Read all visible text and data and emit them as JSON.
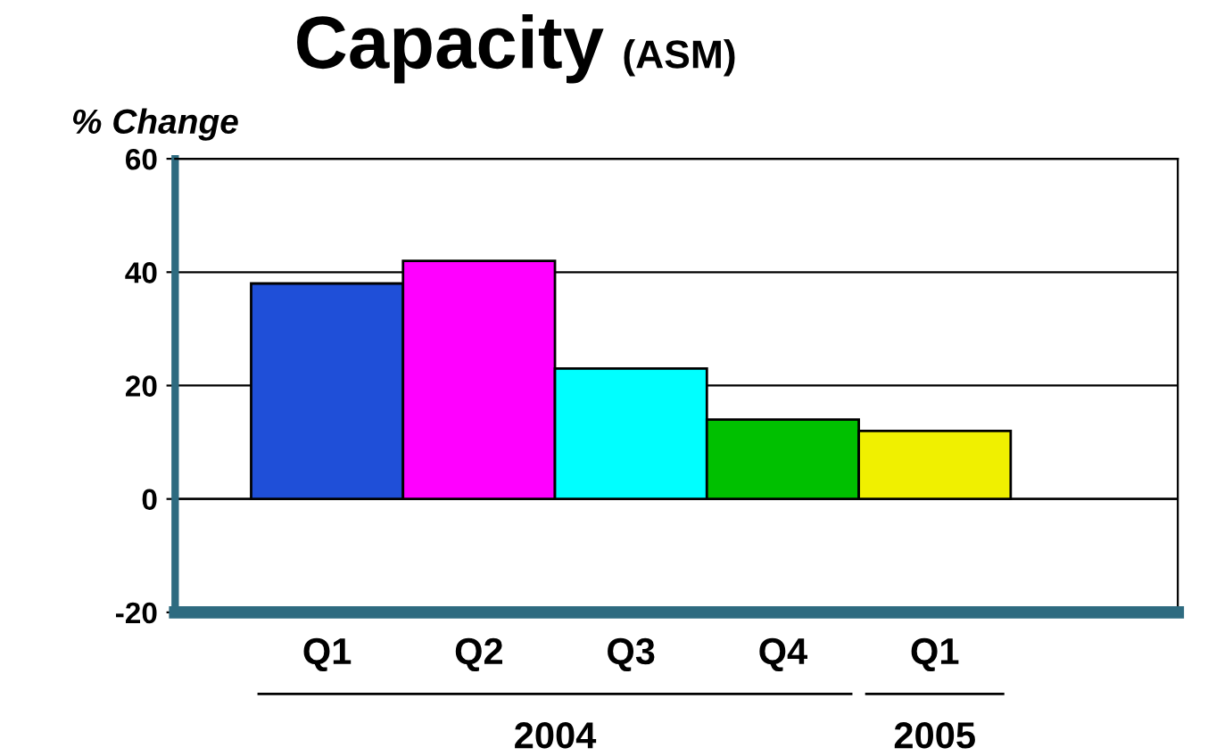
{
  "chart_data": {
    "type": "bar",
    "title": "Capacity",
    "subtitle": "(ASM)",
    "ylabel": "% Change",
    "categories": [
      "Q1",
      "Q2",
      "Q3",
      "Q4",
      "Q1"
    ],
    "values": [
      38,
      42,
      23,
      14,
      12
    ],
    "colors": [
      "#1f4fd8",
      "#ff00ff",
      "#00ffff",
      "#00c000",
      "#f0f000"
    ],
    "ylim": [
      -20,
      60
    ],
    "yticks": [
      -20,
      0,
      20,
      40,
      60
    ],
    "grid": "y",
    "annotations": [
      "2004",
      "2005"
    ]
  }
}
